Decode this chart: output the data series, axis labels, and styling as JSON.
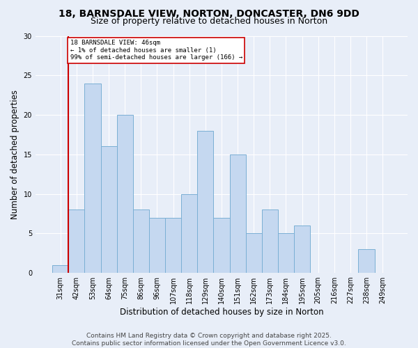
{
  "title1": "18, BARNSDALE VIEW, NORTON, DONCASTER, DN6 9DD",
  "title2": "Size of property relative to detached houses in Norton",
  "xlabel": "Distribution of detached houses by size in Norton",
  "ylabel": "Number of detached properties",
  "categories": [
    "31sqm",
    "42sqm",
    "53sqm",
    "64sqm",
    "75sqm",
    "86sqm",
    "96sqm",
    "107sqm",
    "118sqm",
    "129sqm",
    "140sqm",
    "151sqm",
    "162sqm",
    "173sqm",
    "184sqm",
    "195sqm",
    "205sqm",
    "216sqm",
    "227sqm",
    "238sqm",
    "249sqm"
  ],
  "values": [
    1,
    8,
    24,
    16,
    20,
    8,
    7,
    7,
    10,
    18,
    7,
    15,
    5,
    8,
    5,
    6,
    0,
    0,
    0,
    3,
    0
  ],
  "bar_color": "#c5d8f0",
  "bar_edge_color": "#7aafd4",
  "highlight_bar_idx": 1,
  "highlight_color": "#cc0000",
  "annotation_text": "18 BARNSDALE VIEW: 46sqm\n← 1% of detached houses are smaller (1)\n99% of semi-detached houses are larger (166) →",
  "annotation_box_color": "#ffffff",
  "annotation_box_edge": "#cc0000",
  "ylim": [
    0,
    30
  ],
  "yticks": [
    0,
    5,
    10,
    15,
    20,
    25,
    30
  ],
  "footer": "Contains HM Land Registry data © Crown copyright and database right 2025.\nContains public sector information licensed under the Open Government Licence v3.0.",
  "bg_color": "#e8eef8",
  "title1_fontsize": 10,
  "title2_fontsize": 9,
  "xlabel_fontsize": 8.5,
  "ylabel_fontsize": 8.5,
  "tick_fontsize": 7,
  "footer_fontsize": 6.5
}
